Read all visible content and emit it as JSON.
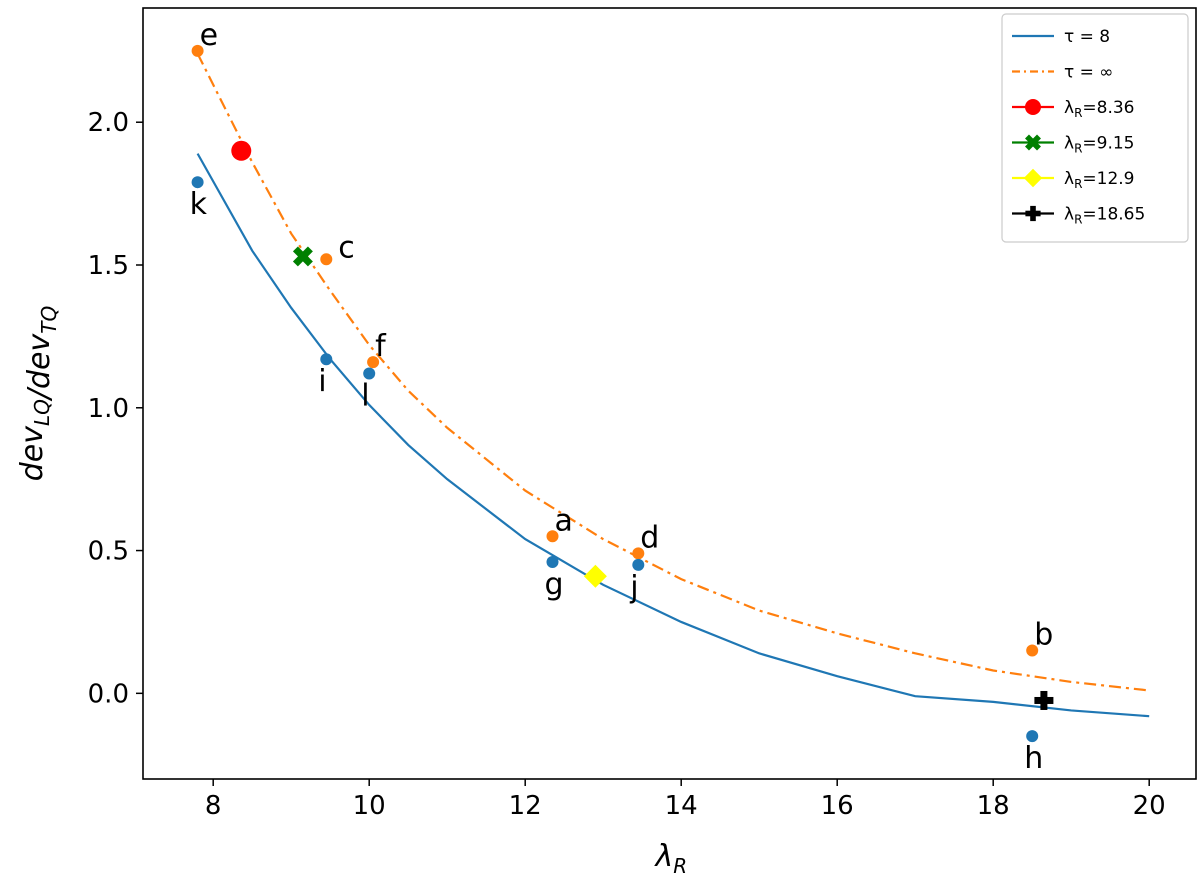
{
  "chart_data": {
    "type": "scatter",
    "xlabel": {
      "base": "λ",
      "sub": "R"
    },
    "ylabel": {
      "parts": [
        {
          "t": "dev",
          "sub": "LQ"
        },
        {
          "t": "/dev",
          "sub": "TQ"
        }
      ]
    },
    "xlim": [
      7.1,
      20.6
    ],
    "ylim": [
      -0.3,
      2.4
    ],
    "xticks": [
      8,
      10,
      12,
      14,
      16,
      18,
      20
    ],
    "xtick_labels": [
      "8",
      "10",
      "12",
      "14",
      "16",
      "18",
      "20"
    ],
    "yticks": [
      0.0,
      0.5,
      1.0,
      1.5,
      2.0
    ],
    "ytick_labels": [
      "0.0",
      "0.5",
      "1.0",
      "1.5",
      "2.0"
    ],
    "grid": false,
    "legend_position": "top-right",
    "colors": {
      "blue": "#1f77b4",
      "orange": "#ff7f0e",
      "red": "#ff0000",
      "green": "#008000",
      "yellow": "#ffff00",
      "black": "#000000"
    },
    "curves": [
      {
        "name": "τ = 8",
        "legend_text": "τ = 8",
        "style": "solid",
        "color": "#1f77b4",
        "x": [
          7.8,
          8.5,
          9.0,
          9.5,
          10.0,
          10.5,
          11.0,
          12.0,
          13.0,
          14.0,
          15.0,
          16.0,
          17.0,
          18.0,
          19.0,
          20.0
        ],
        "y": [
          1.89,
          1.55,
          1.35,
          1.17,
          1.01,
          0.87,
          0.75,
          0.54,
          0.38,
          0.25,
          0.14,
          0.06,
          -0.01,
          -0.03,
          -0.06,
          -0.08
        ]
      },
      {
        "name": "τ = ∞",
        "legend_text": "τ = ∞",
        "style": "dashdot",
        "color": "#ff7f0e",
        "x": [
          7.8,
          8.5,
          9.0,
          9.5,
          10.0,
          10.5,
          11.0,
          12.0,
          13.0,
          14.0,
          15.0,
          16.0,
          17.0,
          18.0,
          19.0,
          20.0
        ],
        "y": [
          2.24,
          1.86,
          1.61,
          1.41,
          1.22,
          1.06,
          0.93,
          0.71,
          0.54,
          0.4,
          0.29,
          0.21,
          0.14,
          0.08,
          0.04,
          0.01
        ]
      }
    ],
    "points": [
      {
        "label": "e",
        "x": 7.8,
        "y": 2.25,
        "color": "#ff7f0e",
        "label_pos": "above-right"
      },
      {
        "label": "c",
        "x": 9.45,
        "y": 1.52,
        "color": "#ff7f0e",
        "label_pos": "right"
      },
      {
        "label": "f",
        "x": 10.05,
        "y": 1.16,
        "color": "#ff7f0e",
        "label_pos": "above-right"
      },
      {
        "label": "a",
        "x": 12.35,
        "y": 0.55,
        "color": "#ff7f0e",
        "label_pos": "above-right"
      },
      {
        "label": "d",
        "x": 13.45,
        "y": 0.49,
        "color": "#ff7f0e",
        "label_pos": "above-right"
      },
      {
        "label": "b",
        "x": 18.5,
        "y": 0.15,
        "color": "#ff7f0e",
        "label_pos": "above-right"
      },
      {
        "label": "k",
        "x": 7.8,
        "y": 1.79,
        "color": "#1f77b4",
        "label_pos": "below"
      },
      {
        "label": "i",
        "x": 9.45,
        "y": 1.17,
        "color": "#1f77b4",
        "label_pos": "below"
      },
      {
        "label": "l",
        "x": 10.0,
        "y": 1.12,
        "color": "#1f77b4",
        "label_pos": "below"
      },
      {
        "label": "g",
        "x": 12.35,
        "y": 0.46,
        "color": "#1f77b4",
        "label_pos": "below"
      },
      {
        "label": "j",
        "x": 13.45,
        "y": 0.45,
        "color": "#1f77b4",
        "label_pos": "below"
      },
      {
        "label": "h",
        "x": 18.5,
        "y": -0.15,
        "color": "#1f77b4",
        "label_pos": "below"
      }
    ],
    "markers": [
      {
        "name": "λR=8.36",
        "legend_value": "=8.36",
        "x": 8.36,
        "y": 1.9,
        "shape": "circle",
        "color": "#ff0000"
      },
      {
        "name": "λR=9.15",
        "legend_value": "=9.15",
        "x": 9.15,
        "y": 1.53,
        "shape": "x",
        "color": "#008000"
      },
      {
        "name": "λR=12.9",
        "legend_value": "=12.9",
        "x": 12.9,
        "y": 0.41,
        "shape": "diamond",
        "color": "#ffff00"
      },
      {
        "name": "λR=18.65",
        "legend_value": "=18.65",
        "x": 18.65,
        "y": -0.025,
        "shape": "plus",
        "color": "#000000"
      }
    ]
  }
}
